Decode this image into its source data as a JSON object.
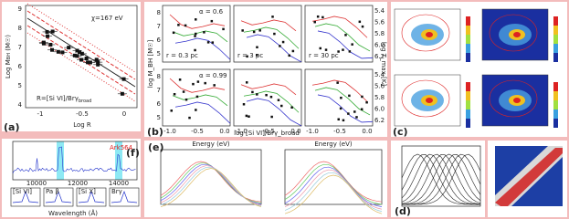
{
  "panel_a": {
    "label": "(a)",
    "annotation": "χ=167 eV",
    "ratio": "R=[Si VI]/Brγ",
    "ratio_sub": "broad",
    "y_label": "Log M",
    "y_label_sub": "BH",
    "y_label_unit": " (M☉)",
    "x_label": "Log R",
    "yticks": [
      "9",
      "8",
      "7",
      "6",
      "5",
      "4"
    ],
    "xticks": [
      "-1",
      "-0.5",
      "0"
    ]
  },
  "panel_b": {
    "label": "(b)",
    "y_label": "log M_BH [M☉]",
    "y2_label": "log T_max [K]",
    "x_label": "log [Si VI]/Brγ_broad",
    "radii": [
      "r = 0.3 pc",
      "r = 3 pc",
      "r = 30 pc"
    ],
    "alphas": [
      "α = 0.6",
      "α = 0.99"
    ],
    "yticks": [
      "8",
      "7",
      "6",
      "5"
    ],
    "y2ticks": [
      "5.4",
      "5.6",
      "5.8",
      "6.0",
      "6.2"
    ],
    "xticks": [
      "-1.0",
      "-0.5",
      "0.0"
    ]
  },
  "panel_c": {
    "label": "(c)"
  },
  "panel_d": {
    "label": "(d)"
  },
  "panel_e": {
    "label": "(e)",
    "x_label": "Energy (eV)"
  },
  "panel_f": {
    "label": "(f)",
    "object": "Ark564",
    "lines": [
      "[Si VI]",
      "Pa β",
      "[Si X]",
      "Brγ"
    ],
    "x_label": "Wavelength (Å)",
    "xticks": [
      "10000",
      "12000",
      "14000"
    ]
  }
}
